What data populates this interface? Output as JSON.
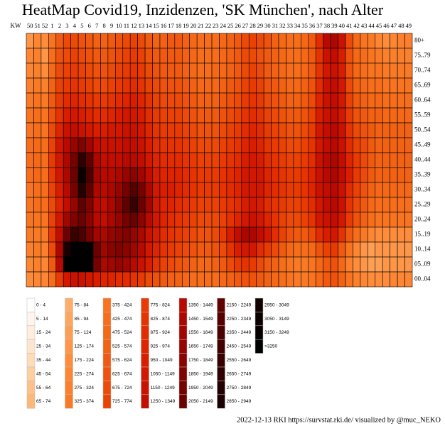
{
  "chart_data": {
    "type": "heatmap",
    "title": "HeatMap Covid19, Inzidenzen, 'SK München', nach Alter",
    "x_label": "KW",
    "categories": [
      "50",
      "51",
      "52",
      "1",
      "2",
      "3",
      "4",
      "5",
      "6",
      "7",
      "8",
      "9",
      "10",
      "11",
      "12",
      "13",
      "14",
      "15",
      "16",
      "17",
      "18",
      "19",
      "20",
      "21",
      "22",
      "23",
      "24",
      "25",
      "26",
      "27",
      "28",
      "29",
      "30",
      "31",
      "32",
      "33",
      "34",
      "35",
      "36",
      "37",
      "38",
      "39",
      "40",
      "41",
      "42",
      "43",
      "44",
      "45",
      "46",
      "47",
      "48",
      "49"
    ],
    "rows": [
      "80+",
      "75..79",
      "70..74",
      "65..69",
      "60..64",
      "55..59",
      "50..54",
      "45..49",
      "40..44",
      "35..39",
      "30..34",
      "25..29",
      "20..24",
      "15..19",
      "10..14",
      "05..09",
      "00..04"
    ],
    "values": [
      [
        150,
        250,
        200,
        400,
        600,
        700,
        700,
        650,
        600,
        550,
        550,
        600,
        650,
        700,
        750,
        700,
        600,
        550,
        550,
        600,
        600,
        550,
        500,
        450,
        450,
        450,
        500,
        550,
        600,
        700,
        750,
        700,
        650,
        550,
        500,
        450,
        450,
        500,
        600,
        900,
        1400,
        1500,
        1200,
        700,
        500,
        400,
        350,
        250,
        200,
        250,
        300,
        300
      ],
      [
        250,
        300,
        150,
        450,
        650,
        700,
        750,
        700,
        650,
        600,
        600,
        650,
        700,
        750,
        800,
        750,
        650,
        600,
        600,
        600,
        600,
        550,
        500,
        450,
        450,
        450,
        500,
        550,
        600,
        700,
        700,
        650,
        600,
        550,
        500,
        450,
        450,
        500,
        600,
        850,
        1200,
        1300,
        1000,
        650,
        500,
        450,
        400,
        350,
        300,
        300,
        300,
        300
      ],
      [
        250,
        300,
        200,
        500,
        700,
        750,
        800,
        750,
        700,
        650,
        650,
        700,
        750,
        800,
        850,
        800,
        700,
        650,
        600,
        600,
        600,
        550,
        500,
        450,
        450,
        500,
        500,
        550,
        600,
        700,
        750,
        700,
        600,
        550,
        500,
        450,
        450,
        500,
        600,
        850,
        1100,
        1200,
        1000,
        650,
        500,
        450,
        400,
        400,
        350,
        350,
        350,
        350
      ],
      [
        300,
        350,
        300,
        550,
        750,
        800,
        850,
        800,
        750,
        700,
        700,
        750,
        800,
        850,
        900,
        850,
        750,
        700,
        650,
        650,
        650,
        600,
        550,
        500,
        500,
        500,
        550,
        600,
        650,
        750,
        800,
        750,
        650,
        600,
        550,
        500,
        500,
        550,
        650,
        900,
        1150,
        1250,
        1050,
        700,
        550,
        500,
        450,
        450,
        400,
        400,
        400,
        400
      ],
      [
        350,
        400,
        350,
        600,
        800,
        900,
        950,
        900,
        850,
        800,
        800,
        850,
        900,
        950,
        1000,
        950,
        850,
        750,
        700,
        700,
        700,
        650,
        600,
        550,
        550,
        550,
        600,
        650,
        700,
        800,
        850,
        800,
        700,
        650,
        600,
        550,
        550,
        600,
        700,
        950,
        1200,
        1300,
        1100,
        750,
        600,
        550,
        500,
        500,
        450,
        450,
        450,
        450
      ],
      [
        400,
        450,
        400,
        650,
        850,
        1000,
        1050,
        1000,
        950,
        900,
        900,
        950,
        1000,
        1050,
        1050,
        1000,
        900,
        800,
        750,
        750,
        750,
        700,
        650,
        600,
        600,
        600,
        650,
        700,
        750,
        850,
        900,
        850,
        750,
        700,
        650,
        600,
        600,
        650,
        750,
        1000,
        1200,
        1300,
        1100,
        800,
        650,
        600,
        550,
        550,
        500,
        500,
        500,
        500
      ],
      [
        400,
        450,
        400,
        700,
        950,
        1150,
        1250,
        1200,
        1100,
        1000,
        1000,
        1050,
        1100,
        1150,
        1150,
        1100,
        950,
        850,
        800,
        800,
        800,
        750,
        700,
        650,
        650,
        650,
        700,
        750,
        800,
        900,
        950,
        900,
        800,
        750,
        700,
        650,
        650,
        700,
        800,
        1050,
        1250,
        1350,
        1150,
        850,
        700,
        650,
        600,
        550,
        550,
        550,
        550,
        550
      ],
      [
        450,
        500,
        450,
        750,
        1050,
        1400,
        1700,
        1900,
        1600,
        1300,
        1200,
        1200,
        1200,
        1250,
        1250,
        1150,
        1000,
        900,
        850,
        850,
        850,
        800,
        750,
        700,
        700,
        700,
        750,
        800,
        850,
        950,
        1000,
        950,
        850,
        800,
        750,
        700,
        700,
        750,
        850,
        1100,
        1300,
        1400,
        1200,
        900,
        750,
        700,
        600,
        550,
        550,
        550,
        550,
        550
      ],
      [
        450,
        500,
        450,
        800,
        1100,
        1500,
        2000,
        2700,
        2200,
        1500,
        1300,
        1300,
        1300,
        1400,
        1400,
        1300,
        1100,
        950,
        900,
        900,
        900,
        850,
        800,
        750,
        750,
        750,
        800,
        850,
        900,
        1000,
        1050,
        1000,
        900,
        850,
        800,
        750,
        750,
        800,
        900,
        1150,
        1350,
        1450,
        1250,
        950,
        800,
        700,
        600,
        550,
        550,
        550,
        550,
        550
      ],
      [
        450,
        500,
        450,
        800,
        1100,
        1500,
        2100,
        3100,
        2400,
        1600,
        1400,
        1400,
        1500,
        1700,
        1800,
        1600,
        1300,
        1000,
        950,
        950,
        950,
        900,
        850,
        800,
        800,
        800,
        850,
        900,
        950,
        1050,
        1100,
        1050,
        950,
        900,
        850,
        800,
        800,
        850,
        950,
        1200,
        1400,
        1500,
        1300,
        1000,
        800,
        700,
        600,
        550,
        550,
        550,
        550,
        550
      ],
      [
        400,
        450,
        450,
        750,
        1000,
        1400,
        2000,
        2800,
        2200,
        1500,
        1400,
        1500,
        1700,
        2000,
        2300,
        2000,
        1500,
        1100,
        1000,
        1000,
        950,
        900,
        850,
        800,
        800,
        800,
        850,
        900,
        950,
        1050,
        1100,
        1050,
        950,
        900,
        850,
        800,
        800,
        850,
        950,
        1150,
        1300,
        1400,
        1200,
        900,
        750,
        650,
        550,
        500,
        500,
        500,
        500,
        500
      ],
      [
        400,
        450,
        450,
        700,
        950,
        1300,
        1700,
        2200,
        1900,
        1400,
        1300,
        1500,
        1800,
        2200,
        2600,
        2100,
        1600,
        1100,
        950,
        950,
        900,
        850,
        800,
        750,
        750,
        750,
        800,
        850,
        900,
        1000,
        1050,
        1000,
        900,
        850,
        800,
        750,
        750,
        800,
        900,
        1100,
        1250,
        1350,
        1150,
        850,
        700,
        600,
        500,
        450,
        450,
        450,
        450,
        450
      ],
      [
        400,
        400,
        400,
        750,
        1050,
        1600,
        1900,
        2100,
        1800,
        1400,
        1300,
        1500,
        1700,
        2000,
        2100,
        1800,
        1400,
        1050,
        950,
        900,
        850,
        800,
        750,
        700,
        700,
        700,
        750,
        850,
        950,
        1100,
        1150,
        1100,
        950,
        850,
        750,
        700,
        700,
        750,
        850,
        1050,
        1200,
        1250,
        1050,
        800,
        650,
        550,
        450,
        400,
        400,
        400,
        400,
        400
      ],
      [
        350,
        350,
        350,
        800,
        1300,
        2100,
        2600,
        2400,
        2000,
        1600,
        1500,
        1700,
        1800,
        1900,
        1700,
        1500,
        1200,
        1000,
        900,
        850,
        800,
        750,
        700,
        650,
        650,
        700,
        800,
        1000,
        1300,
        1500,
        1500,
        1300,
        1100,
        900,
        750,
        650,
        600,
        600,
        700,
        900,
        1000,
        1050,
        850,
        600,
        450,
        350,
        250,
        200,
        200,
        200,
        200,
        200
      ],
      [
        300,
        350,
        300,
        700,
        1500,
        2900,
        3400,
        3400,
        3300,
        2100,
        1600,
        1800,
        1900,
        1800,
        1600,
        1400,
        1100,
        950,
        850,
        800,
        750,
        700,
        650,
        600,
        600,
        650,
        700,
        850,
        1000,
        1100,
        1050,
        900,
        800,
        700,
        600,
        500,
        450,
        450,
        500,
        650,
        750,
        800,
        600,
        400,
        250,
        150,
        100,
        150,
        150,
        150,
        150,
        150
      ],
      [
        250,
        300,
        250,
        600,
        1400,
        3300,
        3500,
        3400,
        3300,
        2000,
        1500,
        1600,
        1700,
        1600,
        1400,
        1200,
        1000,
        850,
        750,
        700,
        650,
        600,
        550,
        500,
        500,
        550,
        600,
        700,
        800,
        850,
        800,
        700,
        600,
        550,
        450,
        400,
        350,
        350,
        400,
        500,
        600,
        650,
        500,
        300,
        200,
        150,
        100,
        100,
        150,
        150,
        150,
        150
      ],
      [
        200,
        250,
        250,
        450,
        800,
        1100,
        1200,
        1150,
        1100,
        1000,
        950,
        950,
        900,
        900,
        850,
        800,
        700,
        650,
        600,
        550,
        550,
        500,
        450,
        450,
        450,
        450,
        500,
        550,
        600,
        650,
        650,
        600,
        550,
        500,
        450,
        400,
        350,
        350,
        400,
        500,
        600,
        650,
        550,
        400,
        300,
        250,
        200,
        200,
        200,
        250,
        250,
        250
      ]
    ],
    "legend": [
      {
        "label": "0 - 4",
        "color": "#ffffff"
      },
      {
        "label": "5 - 14",
        "color": "#fff5ee"
      },
      {
        "label": "15 - 24",
        "color": "#ffeedd"
      },
      {
        "label": "25 - 34",
        "color": "#fee6ce"
      },
      {
        "label": "35 - 44",
        "color": "#fddcb8"
      },
      {
        "label": "45 - 54",
        "color": "#fdd0a2"
      },
      {
        "label": "55 - 64",
        "color": "#fdc28a"
      },
      {
        "label": "65 - 74",
        "color": "#fdb877"
      },
      {
        "label": "75 - 84",
        "color": "#fdae6b"
      },
      {
        "label": "85 - 94",
        "color": "#fda660"
      },
      {
        "label": "75 - 124",
        "color": "#fd9e55"
      },
      {
        "label": "125 - 174",
        "color": "#fd9649"
      },
      {
        "label": "175 - 224",
        "color": "#fd8d3c"
      },
      {
        "label": "225 - 274",
        "color": "#fc8634"
      },
      {
        "label": "275 - 324",
        "color": "#fb802d"
      },
      {
        "label": "325 - 374",
        "color": "#f97a26"
      },
      {
        "label": "375 - 424",
        "color": "#f87420"
      },
      {
        "label": "425 - 474",
        "color": "#f66e1c"
      },
      {
        "label": "475 - 524",
        "color": "#f46818"
      },
      {
        "label": "525 - 574",
        "color": "#f26214"
      },
      {
        "label": "575 - 624",
        "color": "#f05a10"
      },
      {
        "label": "625 - 674",
        "color": "#ee520c"
      },
      {
        "label": "675 - 724",
        "color": "#ec4a08"
      },
      {
        "label": "725 - 774",
        "color": "#ea4205"
      },
      {
        "label": "775 - 824",
        "color": "#e83a03"
      },
      {
        "label": "825 - 874",
        "color": "#e63302"
      },
      {
        "label": "875 - 924",
        "color": "#e22c01"
      },
      {
        "label": "925 - 974",
        "color": "#de2500"
      },
      {
        "label": "950 - 1049",
        "color": "#d91e00"
      },
      {
        "label": "1050 - 1149",
        "color": "#d21800"
      },
      {
        "label": "1150 - 1249",
        "color": "#ca1200"
      },
      {
        "label": "1250 - 1349",
        "color": "#c20d00"
      },
      {
        "label": "1350 - 1449",
        "color": "#b80a00"
      },
      {
        "label": "1450 - 1549",
        "color": "#ad0800"
      },
      {
        "label": "1550 - 1649",
        "color": "#a20600"
      },
      {
        "label": "1650 - 1749",
        "color": "#970500"
      },
      {
        "label": "1750 - 1849",
        "color": "#8c0400"
      },
      {
        "label": "1850 - 1949",
        "color": "#810300"
      },
      {
        "label": "1950 - 2049",
        "color": "#760200"
      },
      {
        "label": "2050 - 2149",
        "color": "#6b0100"
      },
      {
        "label": "2150 - 2249",
        "color": "#600100"
      },
      {
        "label": "2250 - 2349",
        "color": "#560000"
      },
      {
        "label": "2350 - 2449",
        "color": "#4c0000"
      },
      {
        "label": "2450 - 2549",
        "color": "#420000"
      },
      {
        "label": "2550 - 2649",
        "color": "#380000"
      },
      {
        "label": "2650 - 2749",
        "color": "#2e0000"
      },
      {
        "label": "2750 - 2849",
        "color": "#240000"
      },
      {
        "label": "2850 - 2949",
        "color": "#1a0000"
      },
      {
        "label": "2950 - 3049",
        "color": "#120000"
      },
      {
        "label": "3050 - 3149",
        "color": "#0c0000"
      },
      {
        "label": "3150 - 3249",
        "color": "#060000"
      },
      {
        "label": ">3250",
        "color": "#000000"
      }
    ],
    "footer": "2022-12-13 RKI https://survstat.rki.de/ visualized by @muc_NEKO"
  }
}
